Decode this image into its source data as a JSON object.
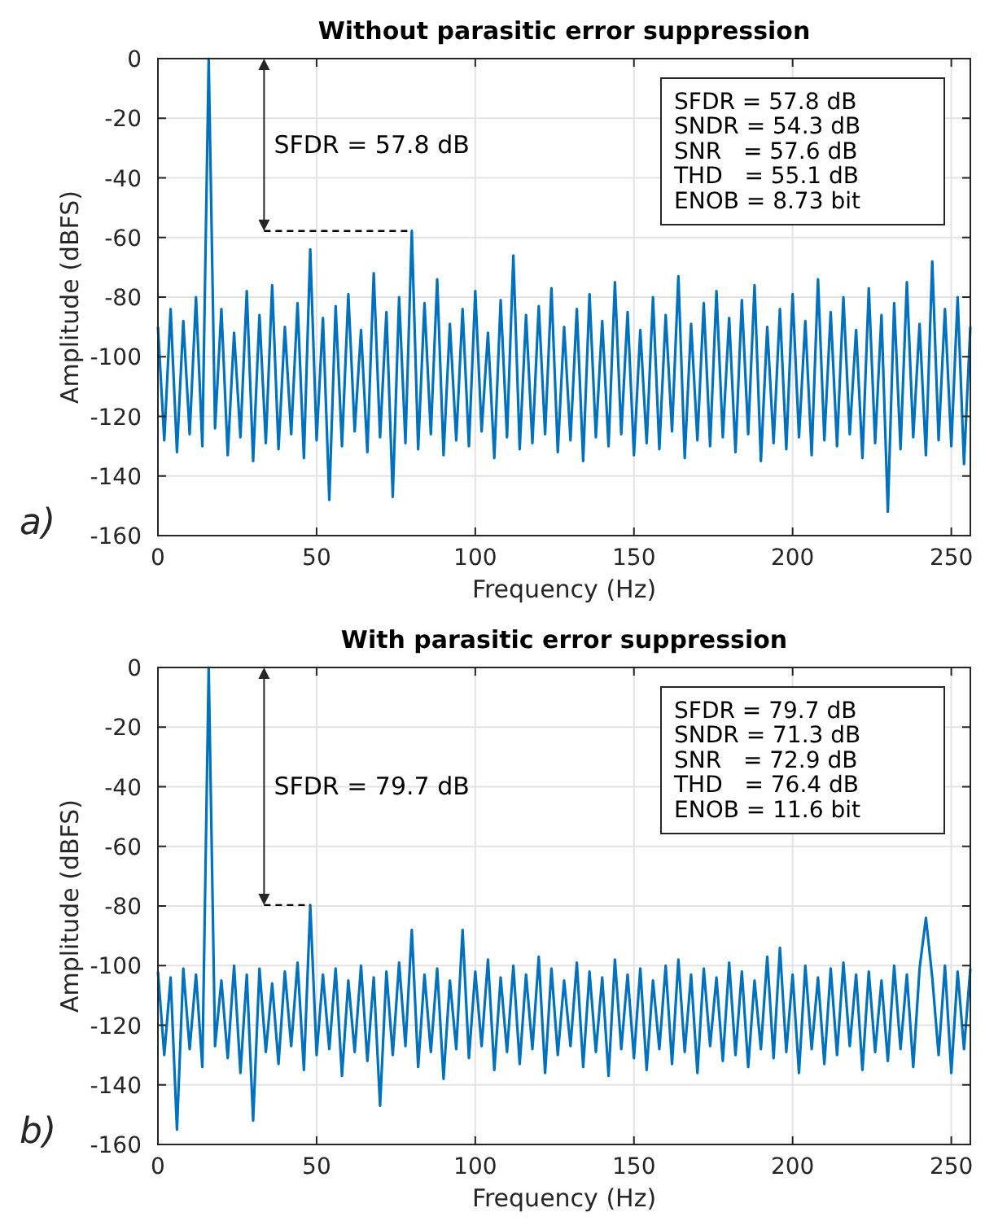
{
  "chart_data": [
    {
      "type": "line",
      "title": "Without parasitic error suppression",
      "xlabel": "Frequency (Hz)",
      "ylabel": "Amplitude (dBFS)",
      "xlim": [
        0,
        256
      ],
      "xticks": [
        0,
        50,
        100,
        150,
        200,
        250
      ],
      "ylim": [
        -160,
        0
      ],
      "yticks": [
        -160,
        -140,
        -120,
        -100,
        -80,
        -60,
        -40,
        -20,
        0
      ],
      "grid": true,
      "x": [
        0,
        2,
        4,
        6,
        8,
        10,
        12,
        14,
        16,
        18,
        20,
        22,
        24,
        26,
        28,
        30,
        32,
        34,
        36,
        38,
        40,
        42,
        44,
        46,
        48,
        50,
        52,
        54,
        56,
        58,
        60,
        62,
        64,
        66,
        68,
        70,
        72,
        74,
        76,
        78,
        80,
        82,
        84,
        86,
        88,
        90,
        92,
        94,
        96,
        98,
        100,
        102,
        104,
        106,
        108,
        110,
        112,
        114,
        116,
        118,
        120,
        122,
        124,
        126,
        128,
        130,
        132,
        134,
        136,
        138,
        140,
        142,
        144,
        146,
        148,
        150,
        152,
        154,
        156,
        158,
        160,
        162,
        164,
        166,
        168,
        170,
        172,
        174,
        176,
        178,
        180,
        182,
        184,
        186,
        188,
        190,
        192,
        194,
        196,
        198,
        200,
        202,
        204,
        206,
        208,
        210,
        212,
        214,
        216,
        218,
        220,
        222,
        224,
        226,
        228,
        230,
        232,
        234,
        236,
        238,
        240,
        242,
        244,
        246,
        248,
        250,
        252,
        254,
        256
      ],
      "series": [
        {
          "color": "#0072bd",
          "values": [
            -90,
            -128,
            -84,
            -132,
            -88,
            -126,
            -80,
            -130,
            0,
            -124,
            -84,
            -133,
            -92,
            -127,
            -78,
            -135,
            -86,
            -129,
            -76,
            -131,
            -90,
            -126,
            -82,
            -134,
            -64,
            -128,
            -87,
            -148,
            -83,
            -130,
            -79,
            -125,
            -91,
            -132,
            -72,
            -127,
            -85,
            -147,
            -80,
            -129,
            -57.8,
            -131,
            -82,
            -126,
            -74,
            -133,
            -89,
            -128,
            -84,
            -130,
            -78,
            -125,
            -92,
            -134,
            -81,
            -127,
            -66,
            -131,
            -86,
            -129,
            -83,
            -126,
            -77,
            -132,
            -90,
            -128,
            -84,
            -135,
            -79,
            -127,
            -88,
            -130,
            -75,
            -126,
            -85,
            -133,
            -91,
            -129,
            -80,
            -131,
            -86,
            -125,
            -73,
            -134,
            -89,
            -128,
            -82,
            -130,
            -78,
            -127,
            -87,
            -132,
            -81,
            -126,
            -76,
            -135,
            -90,
            -129,
            -84,
            -131,
            -79,
            -127,
            -88,
            -133,
            -74,
            -128,
            -85,
            -130,
            -80,
            -126,
            -91,
            -134,
            -77,
            -129,
            -86,
            -152,
            -82,
            -131,
            -75,
            -127,
            -89,
            -133,
            -68,
            -128,
            -84,
            -130,
            -80,
            -136,
            -90
          ]
        }
      ],
      "annotations": [
        "SFDR = 57.8 dB",
        "SFDR = 57.8 dB",
        "SNDR = 54.3 dB",
        "SNR   = 57.6 dB",
        "THD   = 55.1 dB",
        "ENOB = 8.73 bit",
        "a)"
      ]
    },
    {
      "type": "line",
      "title": "With parasitic error suppression",
      "xlabel": "Frequency (Hz)",
      "ylabel": "Amplitude (dBFS)",
      "xlim": [
        0,
        256
      ],
      "xticks": [
        0,
        50,
        100,
        150,
        200,
        250
      ],
      "ylim": [
        -160,
        0
      ],
      "yticks": [
        -160,
        -140,
        -120,
        -100,
        -80,
        -60,
        -40,
        -20,
        0
      ],
      "grid": true,
      "x": [
        0,
        2,
        4,
        6,
        8,
        10,
        12,
        14,
        16,
        18,
        20,
        22,
        24,
        26,
        28,
        30,
        32,
        34,
        36,
        38,
        40,
        42,
        44,
        46,
        48,
        50,
        52,
        54,
        56,
        58,
        60,
        62,
        64,
        66,
        68,
        70,
        72,
        74,
        76,
        78,
        80,
        82,
        84,
        86,
        88,
        90,
        92,
        94,
        96,
        98,
        100,
        102,
        104,
        106,
        108,
        110,
        112,
        114,
        116,
        118,
        120,
        122,
        124,
        126,
        128,
        130,
        132,
        134,
        136,
        138,
        140,
        142,
        144,
        146,
        148,
        150,
        152,
        154,
        156,
        158,
        160,
        162,
        164,
        166,
        168,
        170,
        172,
        174,
        176,
        178,
        180,
        182,
        184,
        186,
        188,
        190,
        192,
        194,
        196,
        198,
        200,
        202,
        204,
        206,
        208,
        210,
        212,
        214,
        216,
        218,
        220,
        222,
        224,
        226,
        228,
        230,
        232,
        234,
        236,
        238,
        240,
        242,
        244,
        246,
        248,
        250,
        252,
        254,
        256
      ],
      "series": [
        {
          "color": "#0072bd",
          "values": [
            -102,
            -130,
            -104,
            -155,
            -101,
            -128,
            -103,
            -134,
            0,
            -127,
            -105,
            -131,
            -100,
            -136,
            -103,
            -152,
            -101,
            -129,
            -106,
            -133,
            -102,
            -127,
            -99,
            -135,
            -79.7,
            -130,
            -103,
            -128,
            -101,
            -137,
            -105,
            -129,
            -100,
            -132,
            -104,
            -147,
            -102,
            -130,
            -99,
            -127,
            -88,
            -134,
            -103,
            -129,
            -101,
            -138,
            -105,
            -128,
            -88,
            -131,
            -102,
            -127,
            -98,
            -135,
            -104,
            -129,
            -100,
            -133,
            -103,
            -128,
            -97,
            -136,
            -101,
            -130,
            -105,
            -127,
            -99,
            -134,
            -102,
            -129,
            -104,
            -137,
            -98,
            -128,
            -103,
            -131,
            -101,
            -135,
            -105,
            -128,
            -100,
            -133,
            -98,
            -129,
            -103,
            -136,
            -101,
            -127,
            -104,
            -132,
            -99,
            -130,
            -102,
            -134,
            -105,
            -128,
            -97,
            -131,
            -94,
            -129,
            -103,
            -136,
            -100,
            -128,
            -104,
            -133,
            -101,
            -130,
            -99,
            -127,
            -103,
            -135,
            -102,
            -129,
            -105,
            -132,
            -100,
            -128,
            -103,
            -134,
            -101,
            -84,
            -104,
            -130,
            -100,
            -136,
            -102,
            -128,
            -101
          ]
        }
      ],
      "annotations": [
        "SFDR = 79.7 dB",
        "SFDR = 79.7 dB",
        "SNDR = 71.3 dB",
        "SNR   = 72.9 dB",
        "THD   = 76.4 dB",
        "ENOB = 11.6 bit",
        "b)"
      ]
    }
  ]
}
